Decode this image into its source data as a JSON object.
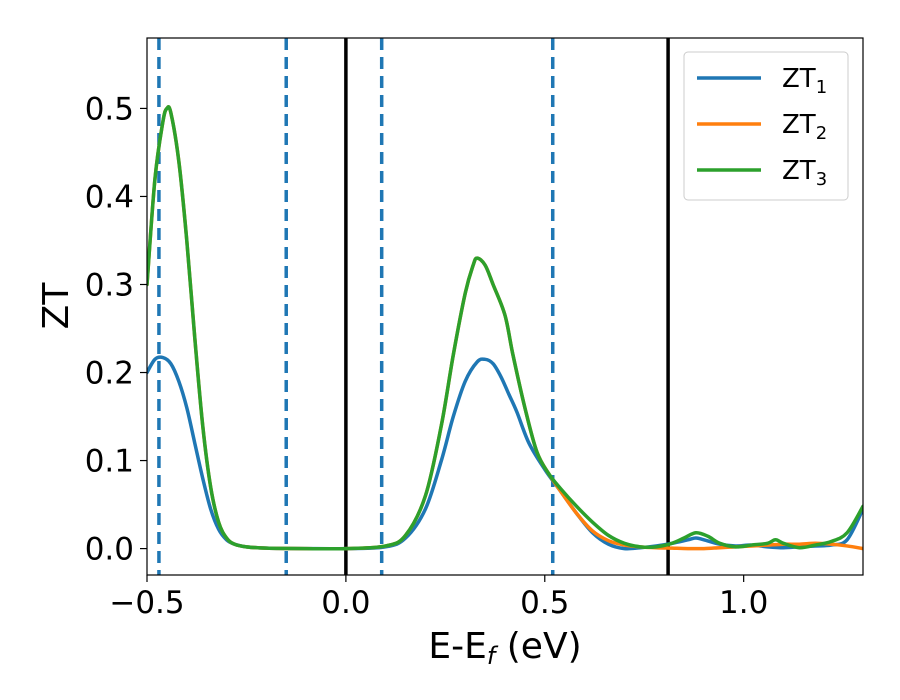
{
  "chart_data": {
    "type": "line",
    "xlabel": {
      "main": "E-E",
      "sub": "f",
      "suffix": " (eV)"
    },
    "ylabel": "ZT",
    "xlim": [
      -0.5,
      1.3
    ],
    "ylim": [
      -0.03,
      0.58
    ],
    "xticks": [
      {
        "value": -0.5,
        "label": "−0.5"
      },
      {
        "value": 0.0,
        "label": "0.0"
      },
      {
        "value": 0.5,
        "label": "0.5"
      },
      {
        "value": 1.0,
        "label": "1.0"
      }
    ],
    "yticks": [
      {
        "value": 0.0,
        "label": "0.0"
      },
      {
        "value": 0.1,
        "label": "0.1"
      },
      {
        "value": 0.2,
        "label": "0.2"
      },
      {
        "value": 0.3,
        "label": "0.3"
      },
      {
        "value": 0.4,
        "label": "0.4"
      },
      {
        "value": 0.5,
        "label": "0.5"
      }
    ],
    "vlines_dashed": {
      "color": "#1f77b4",
      "x": [
        -0.47,
        -0.15,
        0.09,
        0.52
      ]
    },
    "vlines_solid": {
      "color": "#000000",
      "x": [
        0.0,
        0.81
      ]
    },
    "legend": {
      "position": "top-right"
    },
    "series": [
      {
        "name": "ZT",
        "sub": "1",
        "color": "#1f77b4",
        "x": [
          -0.5,
          -0.48,
          -0.46,
          -0.44,
          -0.42,
          -0.4,
          -0.38,
          -0.36,
          -0.34,
          -0.32,
          -0.3,
          -0.28,
          -0.25,
          -0.2,
          -0.1,
          0.0,
          0.1,
          0.15,
          0.2,
          0.24,
          0.27,
          0.3,
          0.33,
          0.35,
          0.37,
          0.39,
          0.41,
          0.43,
          0.46,
          0.5,
          0.54,
          0.58,
          0.62,
          0.66,
          0.7,
          0.74,
          0.78,
          0.82,
          0.86,
          0.88,
          0.9,
          0.94,
          0.98,
          1.02,
          1.06,
          1.1,
          1.14,
          1.18,
          1.22,
          1.26,
          1.3
        ],
        "y": [
          0.2,
          0.215,
          0.217,
          0.21,
          0.19,
          0.16,
          0.12,
          0.08,
          0.045,
          0.022,
          0.01,
          0.005,
          0.002,
          0.0005,
          0.0,
          0.0,
          0.002,
          0.012,
          0.045,
          0.1,
          0.15,
          0.19,
          0.212,
          0.215,
          0.21,
          0.195,
          0.175,
          0.155,
          0.12,
          0.09,
          0.065,
          0.04,
          0.018,
          0.005,
          0.0,
          0.001,
          0.003,
          0.006,
          0.01,
          0.012,
          0.01,
          0.005,
          0.003,
          0.004,
          0.002,
          0.001,
          0.002,
          0.003,
          0.004,
          0.01,
          0.045
        ]
      },
      {
        "name": "ZT",
        "sub": "2",
        "color": "#ff7f0e",
        "x": [
          -0.5,
          -0.48,
          -0.46,
          -0.45,
          -0.44,
          -0.42,
          -0.4,
          -0.38,
          -0.36,
          -0.34,
          -0.32,
          -0.3,
          -0.28,
          -0.25,
          -0.2,
          -0.1,
          0.0,
          0.1,
          0.15,
          0.2,
          0.24,
          0.27,
          0.3,
          0.32,
          0.33,
          0.35,
          0.37,
          0.4,
          0.42,
          0.45,
          0.48,
          0.51,
          0.54,
          0.58,
          0.62,
          0.66,
          0.7,
          0.74,
          0.78,
          0.82,
          0.86,
          0.9,
          0.94,
          0.98,
          1.02,
          1.06,
          1.1,
          1.14,
          1.18,
          1.22,
          1.26,
          1.3
        ],
        "y": [
          0.3,
          0.42,
          0.485,
          0.5,
          0.495,
          0.44,
          0.35,
          0.24,
          0.14,
          0.07,
          0.03,
          0.012,
          0.005,
          0.002,
          0.0005,
          0.0,
          0.0,
          0.003,
          0.015,
          0.06,
          0.14,
          0.22,
          0.29,
          0.322,
          0.33,
          0.322,
          0.3,
          0.265,
          0.22,
          0.16,
          0.11,
          0.085,
          0.065,
          0.04,
          0.02,
          0.009,
          0.004,
          0.002,
          0.001,
          0.0005,
          0.0,
          0.0,
          0.001,
          0.002,
          0.003,
          0.004,
          0.005,
          0.005,
          0.006,
          0.005,
          0.003,
          0.0
        ]
      },
      {
        "name": "ZT",
        "sub": "3",
        "color": "#2ca02c",
        "x": [
          -0.5,
          -0.48,
          -0.46,
          -0.45,
          -0.44,
          -0.42,
          -0.4,
          -0.38,
          -0.36,
          -0.34,
          -0.32,
          -0.3,
          -0.28,
          -0.25,
          -0.2,
          -0.1,
          0.0,
          0.1,
          0.15,
          0.2,
          0.24,
          0.27,
          0.3,
          0.32,
          0.33,
          0.35,
          0.37,
          0.4,
          0.42,
          0.45,
          0.48,
          0.51,
          0.54,
          0.58,
          0.62,
          0.66,
          0.7,
          0.74,
          0.78,
          0.82,
          0.85,
          0.88,
          0.91,
          0.94,
          0.98,
          1.02,
          1.06,
          1.08,
          1.1,
          1.14,
          1.18,
          1.22,
          1.26,
          1.3
        ],
        "y": [
          0.3,
          0.42,
          0.485,
          0.5,
          0.495,
          0.44,
          0.35,
          0.24,
          0.14,
          0.07,
          0.03,
          0.012,
          0.005,
          0.002,
          0.0005,
          0.0,
          0.0,
          0.003,
          0.015,
          0.06,
          0.14,
          0.22,
          0.29,
          0.322,
          0.33,
          0.322,
          0.3,
          0.265,
          0.22,
          0.16,
          0.11,
          0.085,
          0.068,
          0.048,
          0.03,
          0.015,
          0.006,
          0.002,
          0.002,
          0.006,
          0.012,
          0.018,
          0.014,
          0.006,
          0.002,
          0.004,
          0.006,
          0.01,
          0.006,
          0.001,
          0.004,
          0.008,
          0.018,
          0.048
        ]
      }
    ]
  }
}
